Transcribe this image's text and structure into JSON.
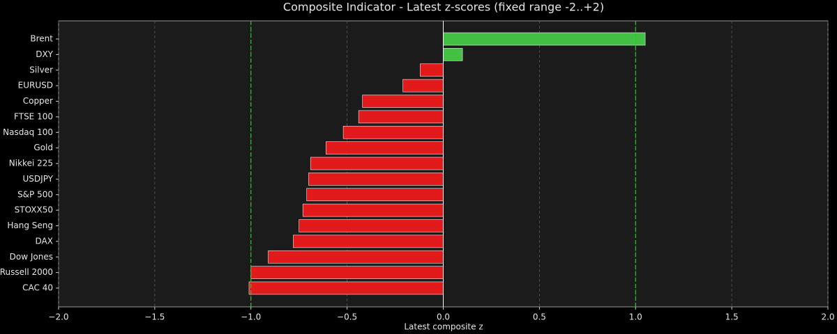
{
  "chart_data": {
    "type": "barh",
    "title": "Composite Indicator - Latest z-scores (fixed range -2..+2)",
    "x_label": "Latest composite z",
    "categories": [
      "Brent",
      "DXY",
      "Silver",
      "EURUSD",
      "Copper",
      "FTSE 100",
      "Nasdaq 100",
      "Gold",
      "Nikkei 225",
      "USDJPY",
      "S&P 500",
      "STOXX50",
      "Hang Seng",
      "DAX",
      "Dow Jones",
      "Russell 2000",
      "CAC 40"
    ],
    "values": [
      1.05,
      0.1,
      -0.12,
      -0.21,
      -0.42,
      -0.44,
      -0.52,
      -0.61,
      -0.69,
      -0.7,
      -0.71,
      -0.73,
      -0.75,
      -0.78,
      -0.91,
      -1.0,
      -1.01
    ],
    "positive_color": "#44c144",
    "negative_color": "#e31a1c",
    "xlim": [
      -2,
      2
    ],
    "xticks": [
      {
        "value": -2,
        "label": "−2.0"
      },
      {
        "value": -1.5,
        "label": "−1.5"
      },
      {
        "value": -1,
        "label": "−1.0"
      },
      {
        "value": -0.5,
        "label": "−0.5"
      },
      {
        "value": 0,
        "label": "0.0"
      },
      {
        "value": 0.5,
        "label": "0.5"
      },
      {
        "value": 1,
        "label": "1.0"
      },
      {
        "value": 1.5,
        "label": "1.5"
      },
      {
        "value": 2,
        "label": "2.0"
      }
    ],
    "reference_lines": [
      -1,
      1
    ],
    "reference_color": "#22cc22",
    "grid": true
  }
}
